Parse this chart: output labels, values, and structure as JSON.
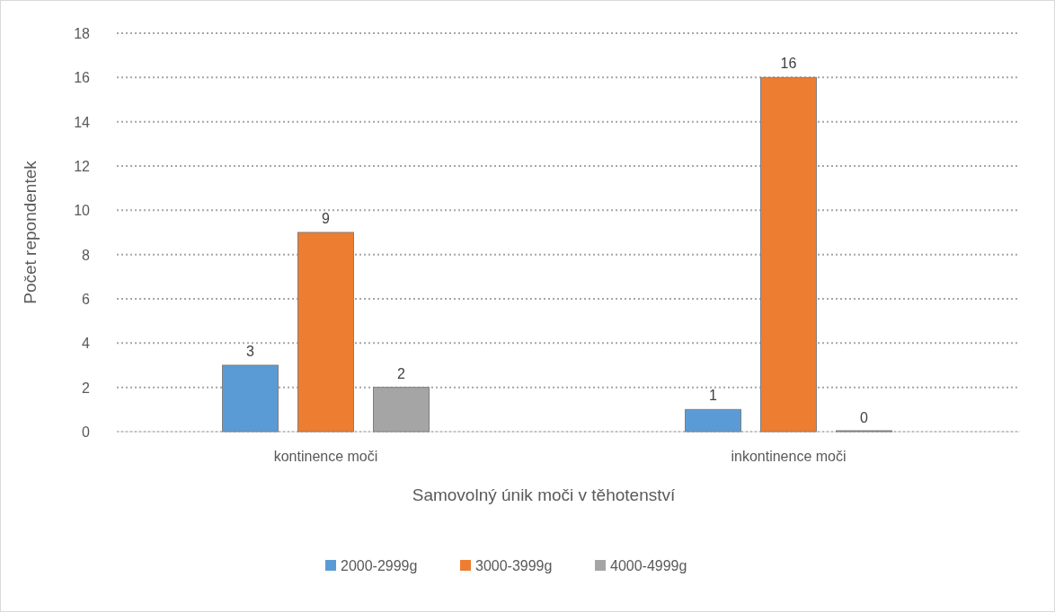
{
  "chart_data": {
    "type": "bar",
    "xlabel": "Samovolný únik moči v těhotenství",
    "ylabel": "Počet repondentek",
    "categories": [
      "kontinence moči",
      "inkontinence moči"
    ],
    "series": [
      {
        "name": "2000-2999g",
        "color": "#5b9bd5",
        "values": [
          3,
          1
        ]
      },
      {
        "name": "3000-3999g",
        "color": "#ed7d31",
        "values": [
          9,
          16
        ]
      },
      {
        "name": "4000-4999g",
        "color": "#a5a5a5",
        "values": [
          2,
          0
        ]
      }
    ],
    "ylim": [
      0,
      18
    ],
    "yticks": [
      0,
      2,
      4,
      6,
      8,
      10,
      12,
      14,
      16,
      18
    ],
    "grid": "y",
    "legend": "bottom",
    "data_labels": true
  }
}
